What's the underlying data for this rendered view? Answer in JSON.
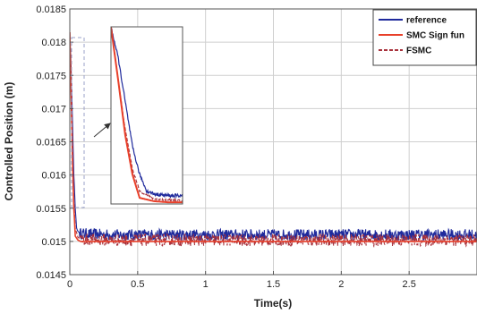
{
  "chart_data": {
    "type": "line",
    "xlabel": "Time(s)",
    "ylabel": "Controlled Position (m)",
    "xlim": [
      0,
      3
    ],
    "ylim": [
      0.0145,
      0.0185
    ],
    "xticks": [
      0,
      0.5,
      1,
      1.5,
      2,
      2.5
    ],
    "xtick_labels": [
      "0",
      "0.5",
      "1",
      "1.5",
      "2",
      "2.5"
    ],
    "yticks": [
      0.0145,
      0.015,
      0.0155,
      0.016,
      0.0165,
      0.017,
      0.0175,
      0.018,
      0.0185
    ],
    "ytick_labels": [
      "0.0145",
      "0.015",
      "0.0155",
      "0.016",
      "0.0165",
      "0.017",
      "0.0175",
      "0.018",
      "0.0185"
    ],
    "grid": true,
    "legend_position": "top-right",
    "series": [
      {
        "name": "reference",
        "color": "#1f2a9c",
        "style": "solid",
        "x": [
          0,
          0.01,
          0.02,
          0.03,
          0.04,
          0.05,
          0.06,
          0.08,
          0.1,
          0.15,
          0.3,
          0.6,
          1.0,
          1.5,
          2.0,
          2.5,
          3.0
        ],
        "y": [
          0.01815,
          0.0176,
          0.0168,
          0.016,
          0.0155,
          0.0152,
          0.01515,
          0.01512,
          0.01512,
          0.01511,
          0.0151,
          0.0151,
          0.0151,
          0.0151,
          0.0151,
          0.0151,
          0.0151
        ]
      },
      {
        "name": "SMC Sign fun",
        "color": "#e8402a",
        "style": "solid",
        "x": [
          0,
          0.01,
          0.02,
          0.03,
          0.04,
          0.06,
          0.08,
          0.1,
          3.0
        ],
        "y": [
          0.01815,
          0.0172,
          0.0162,
          0.0155,
          0.01508,
          0.01502,
          0.015,
          0.015,
          0.015
        ]
      },
      {
        "name": "FSMC",
        "color": "#a8323c",
        "style": "dashed",
        "x": [
          0,
          0.01,
          0.02,
          0.03,
          0.04,
          0.06,
          0.08,
          0.1,
          0.3,
          0.6,
          1.0,
          1.5,
          2.0,
          2.5,
          3.0
        ],
        "y": [
          0.01815,
          0.0172,
          0.0163,
          0.0156,
          0.0152,
          0.01506,
          0.01504,
          0.01503,
          0.01502,
          0.01502,
          0.01502,
          0.01502,
          0.01502,
          0.01502,
          0.01502
        ]
      }
    ],
    "annotation": "zoom-inset"
  }
}
